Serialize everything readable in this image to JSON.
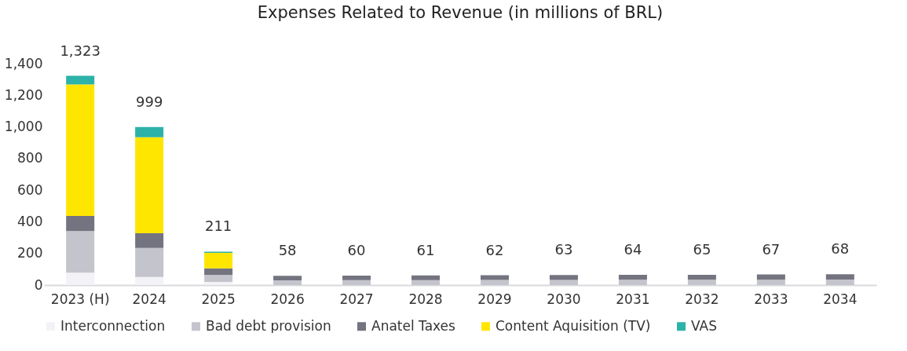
{
  "chart_data": {
    "type": "bar",
    "title": "Expenses Related to Revenue (in millions of BRL)",
    "categories": [
      "2023 (H)",
      "2024",
      "2025",
      "2026",
      "2027",
      "2028",
      "2029",
      "2030",
      "2031",
      "2032",
      "2033",
      "2034"
    ],
    "stacked": true,
    "series": [
      {
        "name": "Interconnection",
        "color": "#f3f3f7",
        "values": [
          78,
          51,
          20,
          0,
          0,
          0,
          0,
          0,
          0,
          0,
          0,
          0
        ]
      },
      {
        "name": "Bad debt provision",
        "color": "#c4c4cd",
        "values": [
          263,
          184,
          45,
          30,
          31,
          31,
          32,
          32,
          33,
          33,
          34,
          35
        ]
      },
      {
        "name": "Anatel Taxes",
        "color": "#747480",
        "values": [
          96,
          93,
          41,
          28,
          29,
          30,
          30,
          31,
          31,
          32,
          33,
          33
        ]
      },
      {
        "name": "Content Aquisition (TV)",
        "color": "#ffe600",
        "values": [
          831,
          607,
          98,
          0,
          0,
          0,
          0,
          0,
          0,
          0,
          0,
          0
        ]
      },
      {
        "name": "VAS",
        "color": "#2db2a9",
        "values": [
          55,
          64,
          7,
          0,
          0,
          0,
          0,
          0,
          0,
          0,
          0,
          0
        ]
      }
    ],
    "totals": [
      "1,323",
      "999",
      "211",
      "58",
      "60",
      "61",
      "62",
      "63",
      "64",
      "65",
      "67",
      "68"
    ],
    "ylim": [
      0,
      1400
    ],
    "yticks": [
      0,
      200,
      400,
      600,
      800,
      {
        "value": 1000,
        "label": "1,000"
      },
      {
        "value": 1200,
        "label": "1,200"
      },
      {
        "value": 1400,
        "label": "1,400"
      }
    ],
    "grid": false,
    "legend": "bottom"
  }
}
